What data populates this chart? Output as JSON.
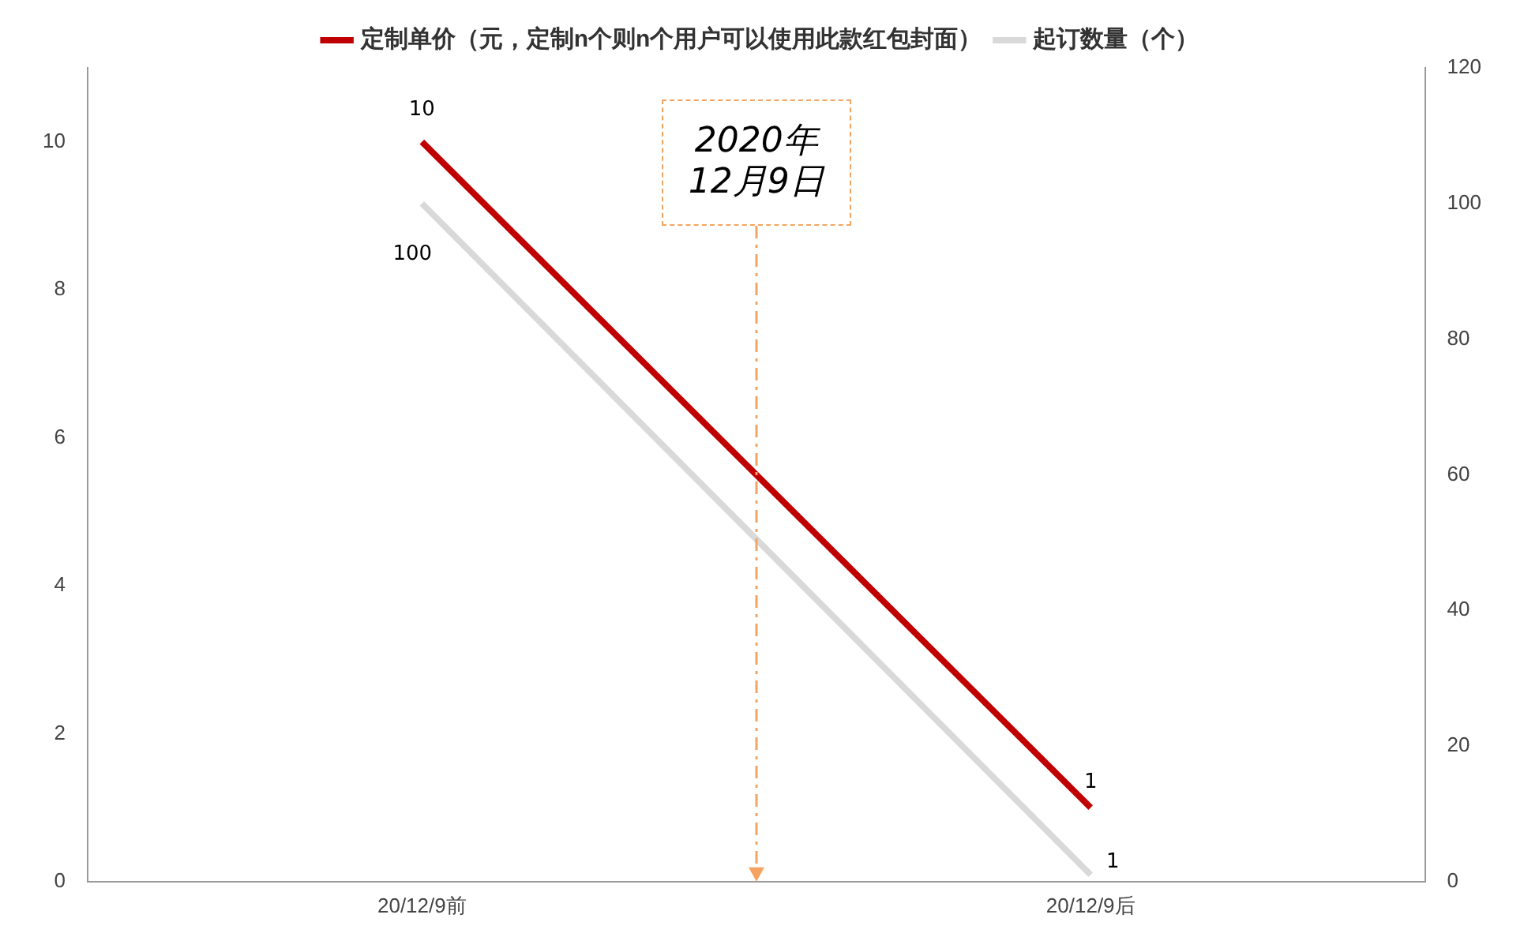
{
  "chart_data": {
    "type": "line",
    "categories": [
      "20/12/9前",
      "20/12/9后"
    ],
    "series": [
      {
        "name": "定制单价（元，定制n个则n个用户可以使用此款红包封面）",
        "color": "#c00000",
        "values": [
          10,
          1
        ]
      },
      {
        "name": "起订数量（个）",
        "color": "#d9d9d9",
        "values": [
          100,
          1
        ],
        "axis": "y2"
      }
    ],
    "ylim": [
      0,
      11
    ],
    "yticks": [
      0,
      2,
      4,
      6,
      8,
      10
    ],
    "y2lim": [
      0,
      120
    ],
    "y2ticks": [
      0,
      20,
      40,
      60,
      80,
      100,
      120
    ],
    "data_labels": true,
    "grid": false,
    "legend": "top",
    "marker": "none",
    "line_style": "solid",
    "annotations": [
      "2020年\n12月9日"
    ]
  }
}
